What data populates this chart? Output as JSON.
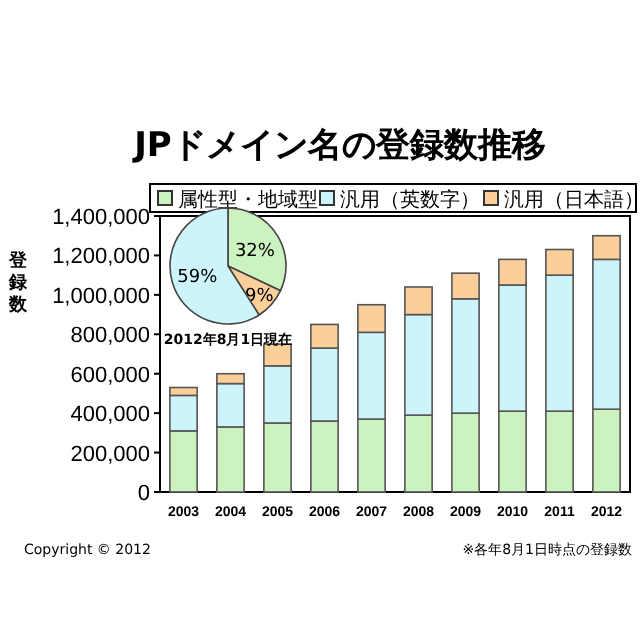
{
  "chart_data": [
    {
      "type": "bar",
      "title": "JPドメイン名の登録数推移",
      "ylabel": "登録数",
      "stacked": true,
      "legend": "top",
      "categories": [
        "2003",
        "2004",
        "2005",
        "2006",
        "2007",
        "2008",
        "2009",
        "2010",
        "2011",
        "2012"
      ],
      "series": [
        {
          "name": "属性型・地域型",
          "color": "#ccf2c0",
          "values": [
            310000,
            330000,
            350000,
            360000,
            370000,
            390000,
            400000,
            410000,
            410000,
            420000
          ]
        },
        {
          "name": "汎用（英数字）",
          "color": "#ccf4fa",
          "values": [
            180000,
            220000,
            290000,
            370000,
            440000,
            510000,
            580000,
            640000,
            690000,
            760000
          ]
        },
        {
          "name": "汎用（日本語）",
          "color": "#fbcf9a",
          "values": [
            40000,
            50000,
            110000,
            120000,
            140000,
            140000,
            130000,
            130000,
            130000,
            120000
          ]
        }
      ],
      "ylim": [
        0,
        1400000
      ],
      "yticks": [
        {
          "value": 0,
          "label": "0"
        },
        {
          "value": 200000,
          "label": "200,000"
        },
        {
          "value": 400000,
          "label": "400,000"
        },
        {
          "value": 600000,
          "label": "600,000"
        },
        {
          "value": 800000,
          "label": "800,000"
        },
        {
          "value": 1000000,
          "label": "1,000,000"
        },
        {
          "value": 1200000,
          "label": "1,200,000"
        },
        {
          "value": 1400000,
          "label": "1,400,000"
        }
      ],
      "annotations": [
        "Copyright © 2012",
        "※各年8月1日時点の登録数"
      ]
    },
    {
      "type": "pie",
      "categories": [
        null,
        null,
        null
      ],
      "values": [
        32,
        9,
        59
      ],
      "colors": [
        "#ccf2c0",
        "#fbcf9a",
        "#ccf4fa"
      ],
      "value_labels": [
        "32%",
        "9%",
        "59%"
      ],
      "annotations": [
        "2012年8月1日現在"
      ]
    }
  ]
}
